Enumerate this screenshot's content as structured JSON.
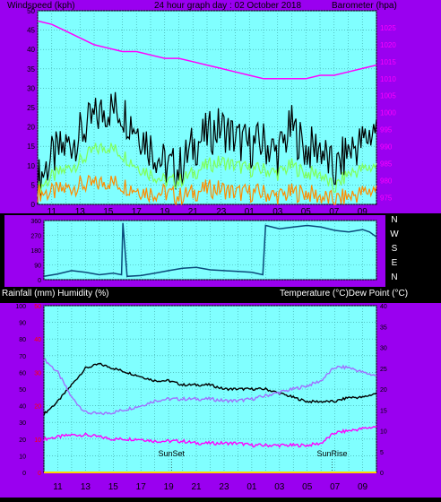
{
  "colors": {
    "panel_bg": "#9a00f0",
    "plot_bg": "#80ffff",
    "grid": "#3aa0a0",
    "header_text": "#000000",
    "wind_gust": "#000000",
    "wind_avg": "#7fff5a",
    "wind_speed": "#ff8c00",
    "barometer": "#ff00ff",
    "direction": "#0a4a7a",
    "temperature": "#000000",
    "humidity": "#a070ff",
    "dew_point": "#ff00ff",
    "rainfall": "#ffd400",
    "left_tick_text": "#000000",
    "right_tick_text": "#ff00ff",
    "rain_tick_text": "#ff0000",
    "x_tick_text": "#000000",
    "compass_text": "#ffffff",
    "label_text": "#ffffff"
  },
  "chart_data": [
    {
      "type": "line",
      "panel": "wind-barometer",
      "title": "24 hour graph day : 02 October 2018",
      "ylabel": "Windspeed (kph)",
      "y2label": "Barometer (hpa)",
      "x_ticks": [
        "11",
        "13",
        "15",
        "17",
        "19",
        "21",
        "23",
        "01",
        "03",
        "05",
        "07",
        "09"
      ],
      "ylim": [
        0,
        50
      ],
      "y_ticks": [
        "0",
        "5",
        "10",
        "15",
        "20",
        "25",
        "30",
        "35",
        "40",
        "45",
        "50"
      ],
      "y2lim": [
        973,
        1030
      ],
      "y2_ticks": [
        "975",
        "980",
        "985",
        "990",
        "995",
        "1000",
        "1005",
        "1010",
        "1015",
        "1020",
        "1025"
      ],
      "grid": true,
      "series": [
        {
          "name": "Barometer",
          "axis": "right",
          "color_key": "barometer",
          "x": [
            0,
            1,
            2,
            3,
            4,
            5,
            6,
            7,
            8,
            9,
            10,
            11,
            12,
            13,
            14,
            15,
            16,
            17,
            18,
            19,
            20,
            21,
            22,
            23,
            24
          ],
          "values": [
            1027,
            1026,
            1024,
            1022,
            1020,
            1019,
            1018,
            1018,
            1017,
            1016,
            1016,
            1015,
            1014,
            1013,
            1012,
            1011,
            1010,
            1010,
            1010,
            1010,
            1011,
            1011,
            1012,
            1013,
            1014
          ]
        },
        {
          "name": "Gust",
          "axis": "left",
          "color_key": "wind_gust",
          "x": [
            0,
            1,
            2,
            3,
            4,
            5,
            6,
            7,
            8,
            9,
            10,
            11,
            12,
            13,
            14,
            15,
            16,
            17,
            18,
            19,
            20,
            21,
            22,
            23,
            24
          ],
          "values": [
            6,
            12,
            15,
            18,
            22,
            25,
            24,
            20,
            15,
            10,
            9,
            15,
            18,
            20,
            17,
            15,
            16,
            13,
            20,
            14,
            15,
            8,
            14,
            16,
            20
          ]
        },
        {
          "name": "Average",
          "axis": "left",
          "color_key": "wind_avg",
          "x": [
            0,
            1,
            2,
            3,
            4,
            5,
            6,
            7,
            8,
            9,
            10,
            11,
            12,
            13,
            14,
            15,
            16,
            17,
            18,
            19,
            20,
            21,
            22,
            23,
            24
          ],
          "values": [
            4,
            7,
            9,
            11,
            14,
            15,
            13,
            10,
            8,
            6,
            6,
            8,
            10,
            11,
            10,
            9,
            9,
            8,
            10,
            8,
            8,
            4,
            8,
            9,
            10
          ]
        },
        {
          "name": "Speed",
          "axis": "left",
          "color_key": "wind_speed",
          "x": [
            0,
            1,
            2,
            3,
            4,
            5,
            6,
            7,
            8,
            9,
            10,
            11,
            12,
            13,
            14,
            15,
            16,
            17,
            18,
            19,
            20,
            21,
            22,
            23,
            24
          ],
          "values": [
            3,
            3,
            4,
            5,
            5,
            6,
            5,
            4,
            3,
            3,
            2,
            3,
            4,
            4,
            3,
            3,
            3,
            2,
            3,
            3,
            2,
            1,
            2,
            3,
            4
          ]
        }
      ]
    },
    {
      "type": "line",
      "panel": "wind-direction",
      "compass": [
        "N",
        "W",
        "S",
        "E",
        "N"
      ],
      "ylim": [
        0,
        360
      ],
      "y_ticks": [
        "0",
        "90",
        "180",
        "270",
        "360"
      ],
      "x_ticks": [],
      "series": [
        {
          "name": "Direction",
          "color_key": "direction",
          "x": [
            0,
            1,
            2,
            3,
            4,
            5,
            5.6,
            5.7,
            6,
            7,
            8,
            9,
            10,
            11,
            12,
            13,
            14,
            15,
            15.8,
            16,
            17,
            18,
            19,
            20,
            21,
            22,
            23,
            23.5,
            24
          ],
          "values": [
            20,
            35,
            55,
            45,
            30,
            40,
            30,
            345,
            20,
            25,
            40,
            55,
            70,
            75,
            60,
            55,
            50,
            45,
            30,
            330,
            310,
            320,
            330,
            320,
            300,
            290,
            305,
            290,
            260
          ]
        }
      ]
    },
    {
      "type": "line",
      "panel": "temperature-humidity",
      "ylabel": "Rainfall (mm)  Humidity (%)",
      "y2label": "Temperature (°C)Dew Point (°C)",
      "x_ticks": [
        "11",
        "13",
        "15",
        "17",
        "19",
        "21",
        "23",
        "01",
        "03",
        "05",
        "07",
        "09"
      ],
      "ylim": [
        0,
        100
      ],
      "y_ticks": [
        "0",
        "10",
        "20",
        "30",
        "40",
        "50",
        "60",
        "70",
        "80",
        "90",
        "100"
      ],
      "rain_ticks": [
        "0",
        "10",
        "20",
        "30",
        "40",
        "50"
      ],
      "y2lim": [
        0,
        40
      ],
      "y2_ticks": [
        "0",
        "5",
        "10",
        "15",
        "20",
        "25",
        "30",
        "35",
        "40"
      ],
      "annotations": [
        {
          "text": "SunSet",
          "x": 9.2
        },
        {
          "text": "SunRise",
          "x": 20.8
        }
      ],
      "series": [
        {
          "name": "Temperature",
          "axis": "right",
          "color_key": "temperature",
          "x": [
            0,
            1,
            2,
            3,
            4,
            5,
            6,
            7,
            8,
            9,
            10,
            11,
            12,
            13,
            14,
            15,
            16,
            17,
            18,
            19,
            20,
            21,
            22,
            23,
            24
          ],
          "values": [
            14,
            17,
            21,
            25,
            26,
            25,
            24,
            23,
            22,
            22,
            21,
            21,
            21,
            20,
            20,
            20,
            20,
            19,
            18,
            17,
            17,
            17,
            18,
            18,
            19
          ]
        },
        {
          "name": "Humidity",
          "axis": "left",
          "color_key": "humidity",
          "x": [
            0,
            1,
            2,
            3,
            4,
            5,
            6,
            7,
            8,
            9,
            10,
            11,
            12,
            13,
            14,
            15,
            16,
            17,
            18,
            19,
            20,
            21,
            22,
            23,
            24
          ],
          "values": [
            68,
            60,
            45,
            36,
            35,
            36,
            38,
            40,
            43,
            44,
            44,
            44,
            44,
            43,
            43,
            44,
            46,
            48,
            50,
            52,
            55,
            63,
            63,
            60,
            58
          ]
        },
        {
          "name": "Dew Point",
          "axis": "right",
          "color_key": "dew_point",
          "x": [
            0,
            1,
            2,
            3,
            4,
            5,
            6,
            7,
            8,
            9,
            10,
            11,
            12,
            13,
            14,
            15,
            16,
            17,
            18,
            19,
            20,
            21,
            22,
            23,
            24
          ],
          "values": [
            8,
            8.5,
            9,
            9,
            8.5,
            8,
            8,
            8,
            7.5,
            7.5,
            7.5,
            7,
            7,
            7,
            7,
            6.5,
            6.5,
            6.5,
            6.5,
            6.5,
            7,
            9.5,
            10,
            10.5,
            11
          ]
        },
        {
          "name": "Rainfall",
          "axis": "left",
          "color_key": "rainfall",
          "x": [
            0,
            24
          ],
          "values": [
            0,
            0
          ]
        }
      ]
    }
  ]
}
